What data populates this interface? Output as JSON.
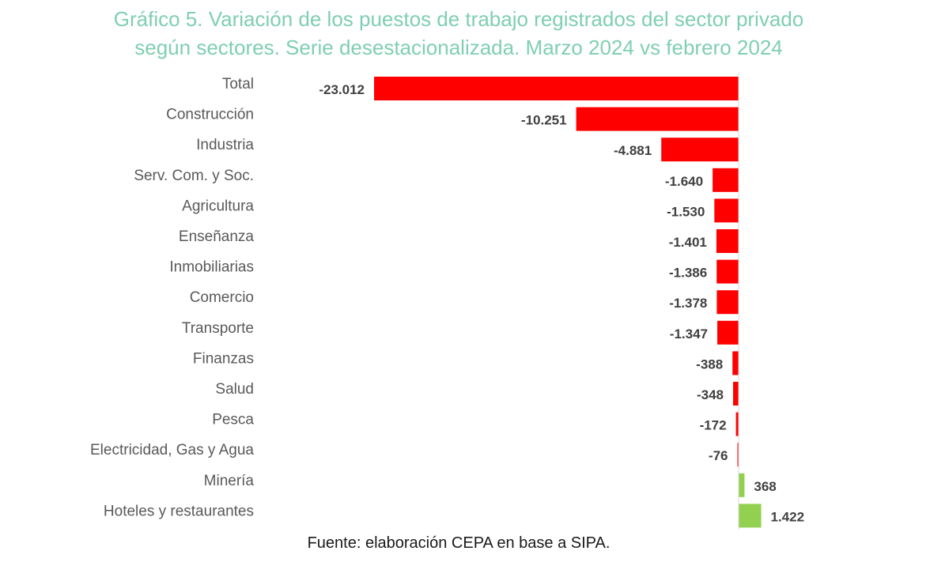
{
  "chart_data": {
    "type": "bar",
    "orientation": "horizontal",
    "title": "Gráfico 5. Variación de los puestos de trabajo registrados del sector privado según sectores. Serie desestacionalizada. Marzo 2024 vs febrero 2024",
    "title_lines": [
      "Gráfico 5. Variación de los puestos de trabajo registrados del sector privado",
      "según sectores. Serie desestacionalizada. Marzo 2024 vs febrero 2024"
    ],
    "xlabel": "",
    "ylabel": "",
    "categories": [
      "Total",
      "Construcción",
      "Industria",
      "Serv. Com. y Soc.",
      "Agricultura",
      "Enseñanza",
      "Inmobiliarias",
      "Comercio",
      "Transporte",
      "Finanzas",
      "Salud",
      "Pesca",
      "Electricidad, Gas y Agua",
      "Minería",
      "Hoteles y restaurantes"
    ],
    "values": [
      -23012,
      -10251,
      -4881,
      -1640,
      -1530,
      -1401,
      -1386,
      -1378,
      -1347,
      -388,
      -348,
      -172,
      -76,
      368,
      1422
    ],
    "value_labels": [
      "-23.012",
      "-10.251",
      "-4.881",
      "-1.640",
      "-1.530",
      "-1.401",
      "-1.386",
      "-1.378",
      "-1.347",
      "-388",
      "-348",
      "-172",
      "-76",
      "368",
      "1.422"
    ],
    "xlim": [
      -23012,
      1422
    ],
    "grid": false,
    "legend": "none",
    "colors": {
      "negative": "#ff0000",
      "positive": "#92d050",
      "axis": "#d9d9d9",
      "title": "#7fcfb0"
    }
  },
  "source": "Fuente: elaboración CEPA en base a SIPA."
}
